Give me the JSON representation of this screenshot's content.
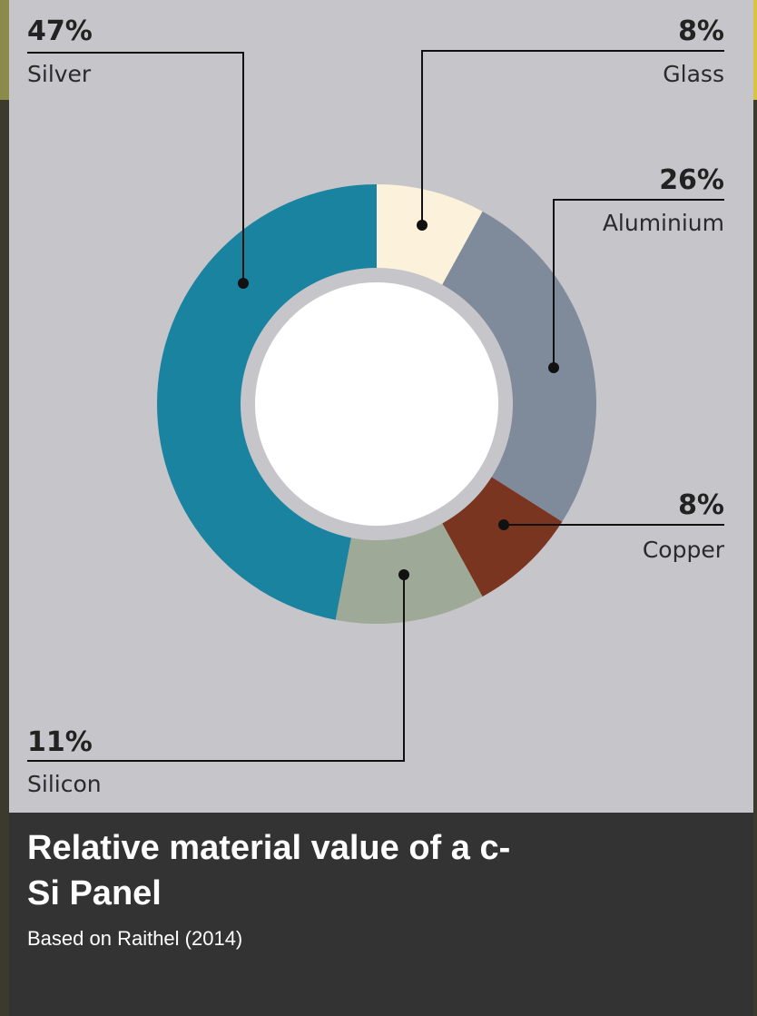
{
  "chart_data": {
    "type": "donut",
    "title": "Relative material value of a c-Si Panel",
    "subtitle": "Based on Raithel (2014)",
    "categories": [
      "Glass",
      "Aluminium",
      "Copper",
      "Silicon",
      "Silver"
    ],
    "values": [
      8,
      26,
      8,
      11,
      47
    ],
    "value_labels": [
      "8%",
      "26%",
      "8%",
      "11%",
      "47%"
    ],
    "colors": [
      "#fcf2dc",
      "#7f8b9b",
      "#7a3520",
      "#9fa997",
      "#1a83a0"
    ]
  }
}
